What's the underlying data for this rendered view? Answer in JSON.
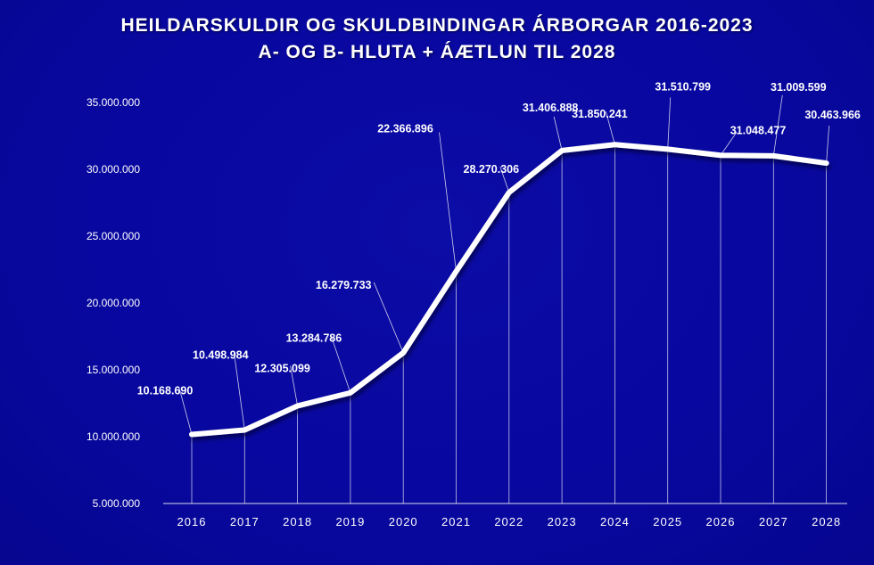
{
  "header": {
    "title_line1": "HEILDARSKULDIR OG SKULDBINDINGAR ÁRBORGAR 2016-2023",
    "title_line2": "A- OG B- HLUTA + ÁÆTLUN TIL 2028"
  },
  "colors": {
    "background": "#0a0a96",
    "line": "#ffffff",
    "text": "#ffffff"
  },
  "chart_data": {
    "type": "line",
    "title": "HEILDARSKULDIR OG SKULDBINDINGAR ÁRBORGAR 2016-2023 A- OG B- HLUTA + ÁÆTLUN TIL 2028",
    "xlabel": "",
    "ylabel": "",
    "categories": [
      "2016",
      "2017",
      "2018",
      "2019",
      "2020",
      "2021",
      "2022",
      "2023",
      "2024",
      "2025",
      "2026",
      "2027",
      "2028"
    ],
    "values": [
      10168690,
      10498984,
      12305099,
      13284786,
      16279733,
      22366896,
      28270306,
      31406888,
      31850241,
      31510799,
      31048477,
      31009599,
      30463966
    ],
    "data_labels": [
      "10.168.690",
      "10.498.984",
      "12.305.099",
      "13.284.786",
      "16.279.733",
      "22.366.896",
      "28.270.306",
      "31.406.888",
      "31.850.241",
      "31.510.799",
      "31.048.477",
      "31.009.599",
      "30.463.966"
    ],
    "ylim": [
      5000000,
      35000000
    ],
    "yticks": [
      5000000,
      10000000,
      15000000,
      20000000,
      25000000,
      30000000,
      35000000
    ],
    "ytick_labels": [
      "5.000.000",
      "10.000.000",
      "15.000.000",
      "20.000.000",
      "25.000.000",
      "30.000.000",
      "35.000.000"
    ],
    "grid": false,
    "legend": "none"
  }
}
